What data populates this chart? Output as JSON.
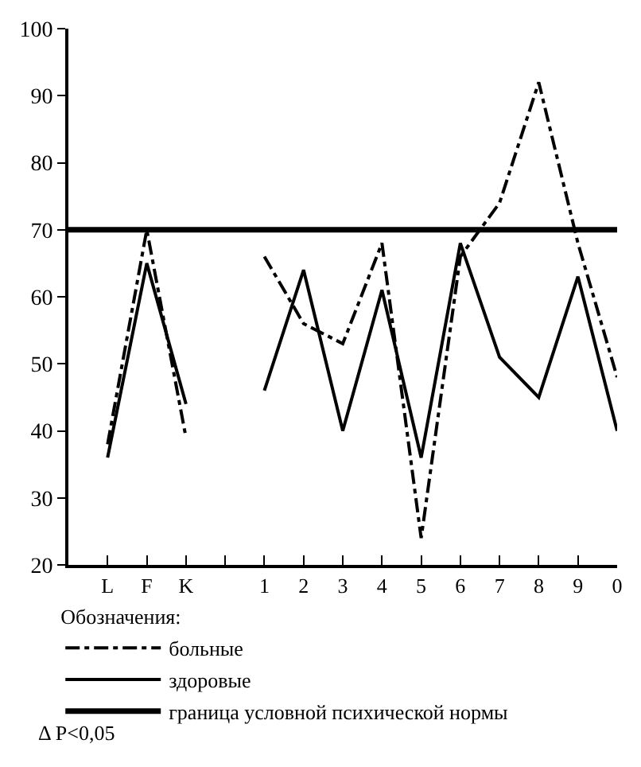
{
  "chart_data": {
    "type": "line",
    "categories": [
      "L",
      "F",
      "K",
      null,
      "1",
      "2",
      "3",
      "4",
      "5",
      "6",
      "7",
      "8",
      "9",
      "0"
    ],
    "ylim": [
      20,
      100
    ],
    "yticks": [
      20,
      30,
      40,
      50,
      60,
      70,
      80,
      90,
      100
    ],
    "legend": "bottom",
    "legend_title": "Обозначения:",
    "marker": "none",
    "series": [
      {
        "name": "больные",
        "color": "#000000",
        "line_style": "dashed",
        "values": [
          38,
          70,
          39,
          null,
          66,
          56,
          53,
          68,
          24,
          66,
          74,
          92,
          68,
          48
        ]
      },
      {
        "name": "здоровые",
        "color": "#000000",
        "line_style": "solid",
        "values": [
          36,
          65,
          44,
          null,
          46,
          64,
          40,
          61,
          36,
          68,
          51,
          45,
          63,
          40
        ]
      }
    ],
    "ref_lines": [
      {
        "axis": "y",
        "value": 70,
        "label": "граница условной психической нормы",
        "color": "#000000"
      }
    ],
    "annotations": [
      "Δ P<0,05"
    ]
  }
}
